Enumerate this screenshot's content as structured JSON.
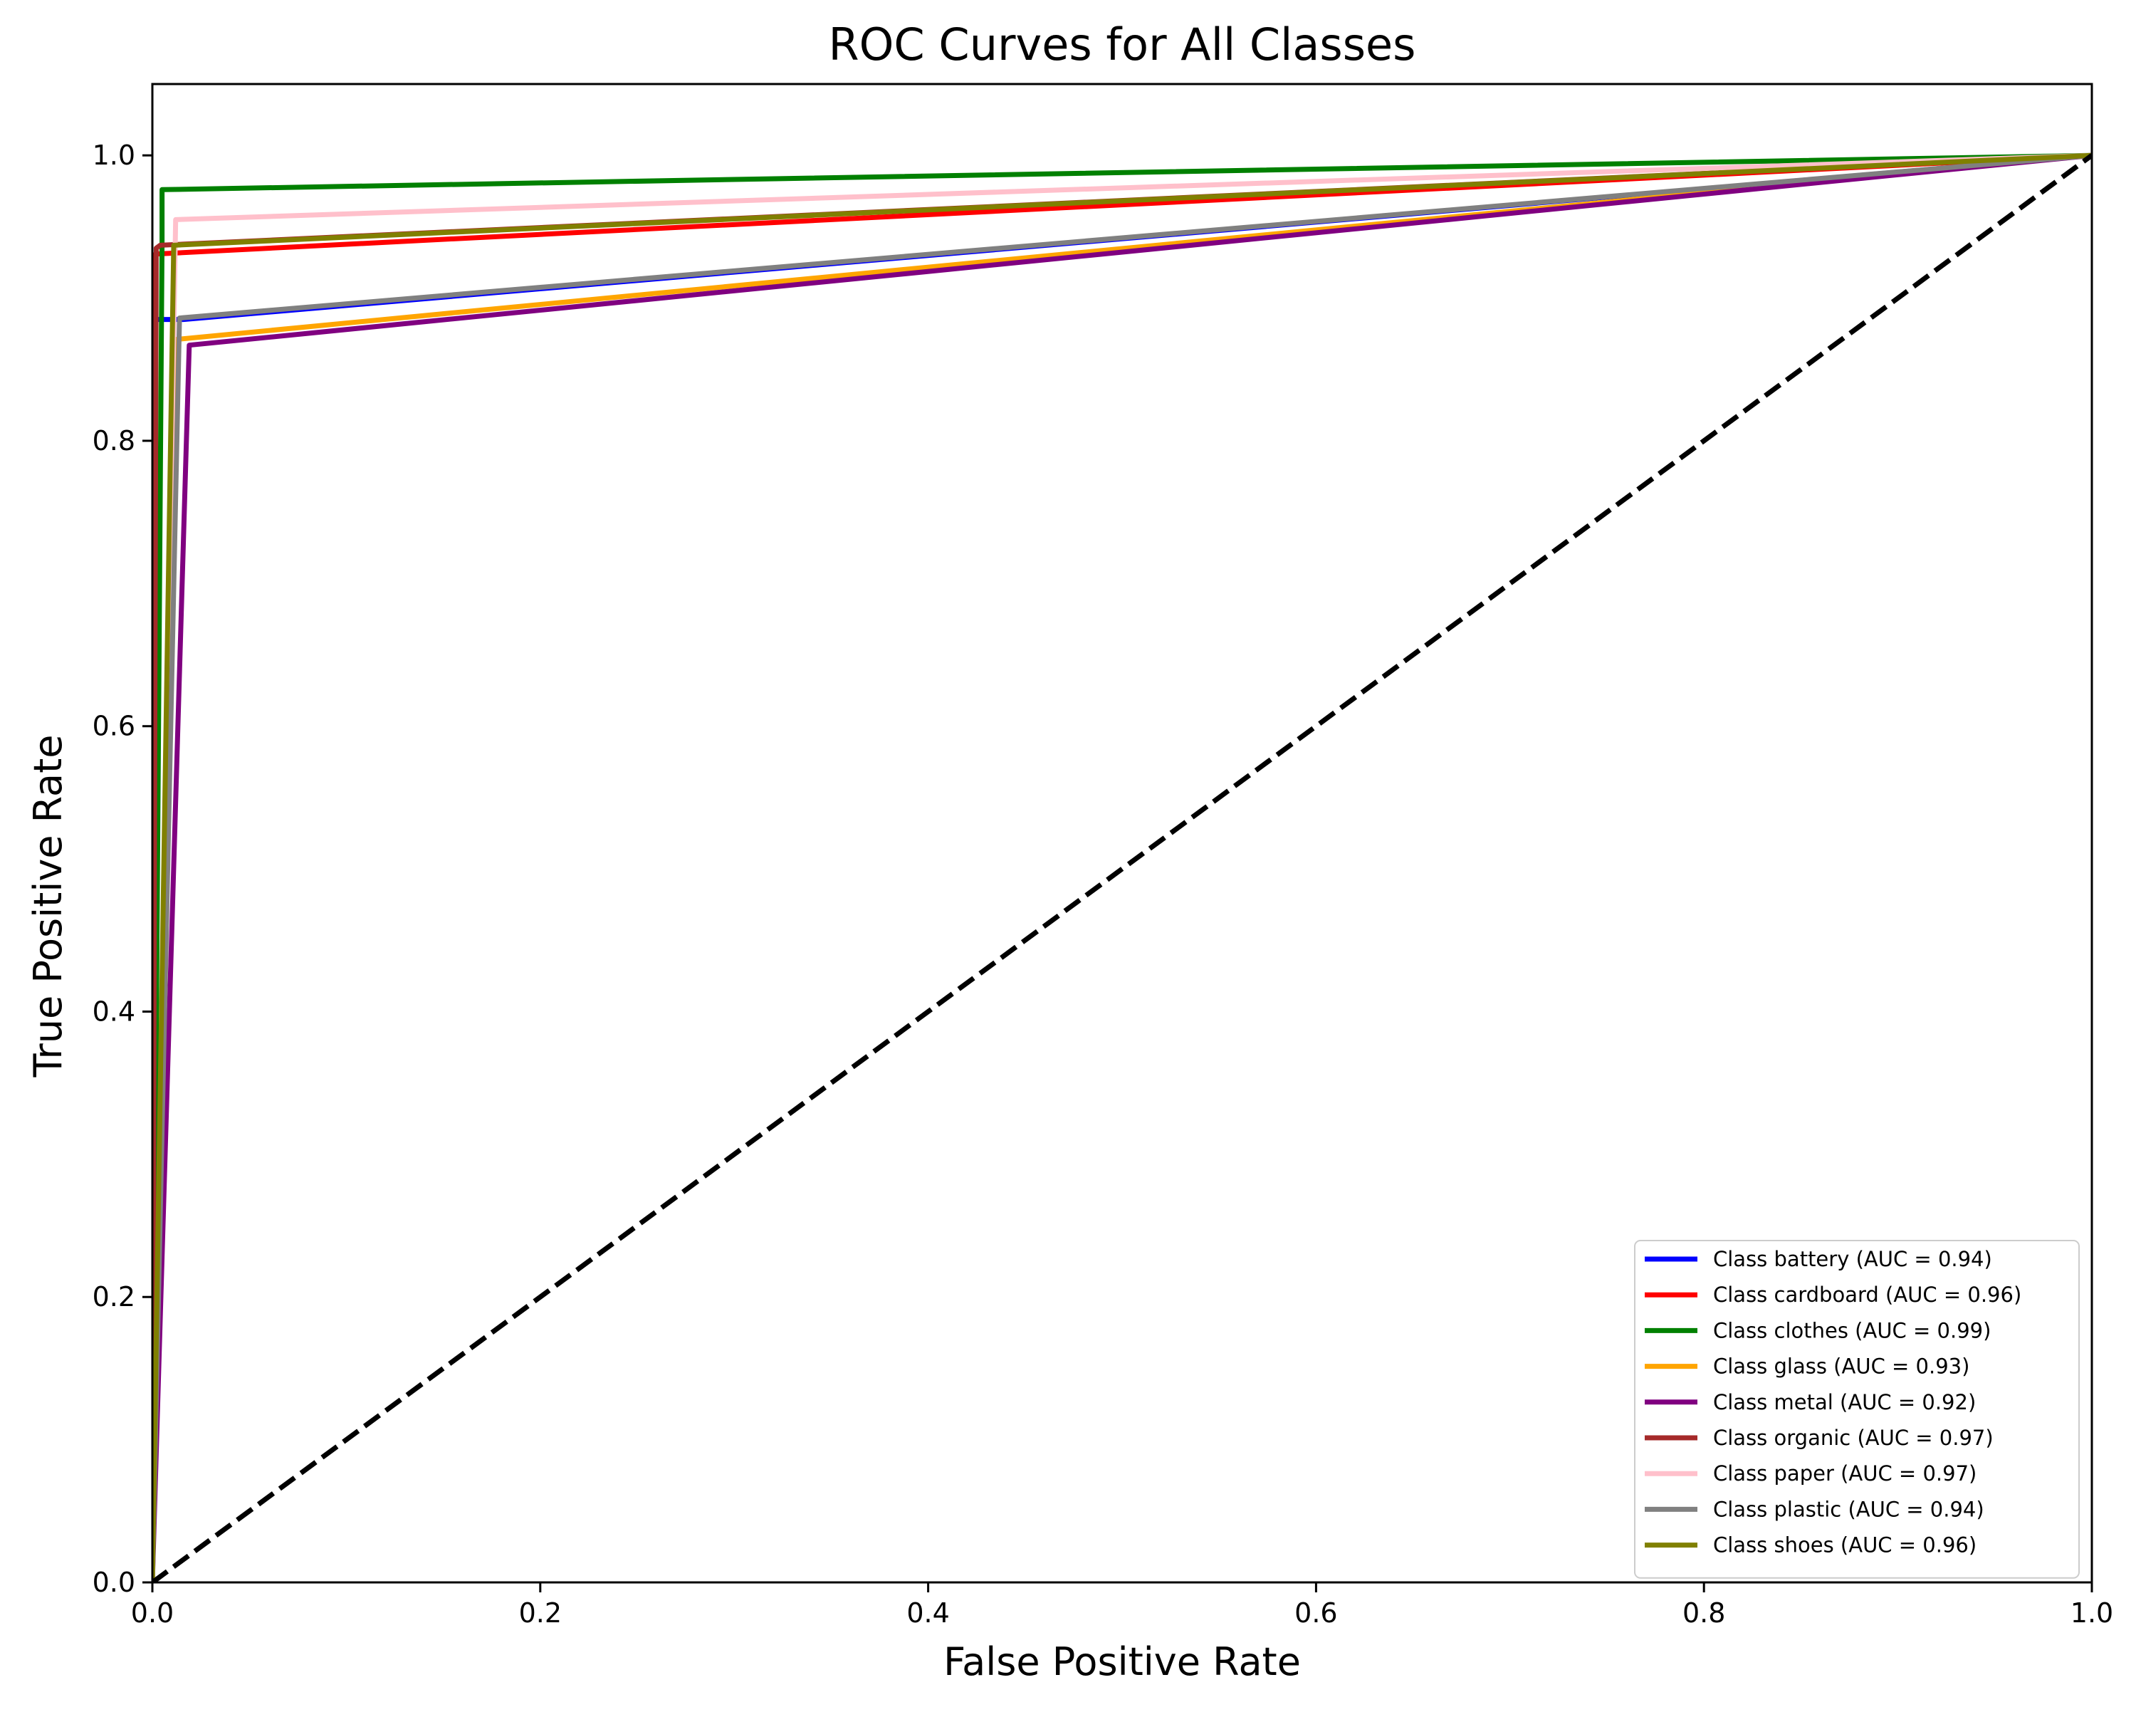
{
  "chart_data": {
    "type": "line",
    "title": "ROC Curves for All Classes",
    "xlabel": "False Positive Rate",
    "ylabel": "True Positive Rate",
    "xlim": [
      0.0,
      1.05
    ],
    "ylim": [
      0.0,
      1.05
    ],
    "display_xlim": [
      0.0,
      1.0
    ],
    "display_ylim": [
      0.0,
      1.05
    ],
    "xticks": [
      0.0,
      0.2,
      0.4,
      0.6,
      0.8,
      1.0
    ],
    "xtick_labels": [
      "0.0",
      "0.2",
      "0.4",
      "0.6",
      "0.8",
      "1.0"
    ],
    "yticks": [
      0.0,
      0.2,
      0.4,
      0.6,
      0.8,
      1.0
    ],
    "ytick_labels": [
      "0.0",
      "0.2",
      "0.4",
      "0.6",
      "0.8",
      "1.0"
    ],
    "grid": false,
    "legend_position": "lower-right",
    "series": [
      {
        "name": "Class battery (AUC = 0.94)",
        "color": "#0000ff",
        "x": [
          0.0,
          0.0,
          0.016,
          1.0
        ],
        "y": [
          0.0,
          0.885,
          0.885,
          1.0
        ]
      },
      {
        "name": "Class cardboard (AUC = 0.96)",
        "color": "#ff0000",
        "x": [
          0.0,
          0.0,
          0.003,
          1.0
        ],
        "y": [
          0.0,
          0.93,
          0.931,
          1.0
        ]
      },
      {
        "name": "Class clothes (AUC = 0.99)",
        "color": "#008000",
        "x": [
          0.0,
          0.005,
          0.005,
          1.0
        ],
        "y": [
          0.0,
          0.94,
          0.976,
          1.0
        ]
      },
      {
        "name": "Class glass (AUC = 0.93)",
        "color": "#ffa500",
        "x": [
          0.0,
          0.012,
          1.0
        ],
        "y": [
          0.0,
          0.871,
          1.0
        ]
      },
      {
        "name": "Class metal (AUC = 0.92)",
        "color": "#800080",
        "x": [
          0.0,
          0.019,
          1.0
        ],
        "y": [
          0.0,
          0.867,
          1.0
        ]
      },
      {
        "name": "Class organic (AUC = 0.97)",
        "color": "#a52a2a",
        "x": [
          0.0,
          0.002,
          0.004,
          1.0
        ],
        "y": [
          0.0,
          0.935,
          0.937,
          1.0
        ]
      },
      {
        "name": "Class paper (AUC = 0.97)",
        "color": "#ffc0cb",
        "x": [
          0.0,
          0.012,
          1.0
        ],
        "y": [
          0.0,
          0.955,
          1.0
        ]
      },
      {
        "name": "Class plastic (AUC = 0.94)",
        "color": "#808080",
        "x": [
          0.0,
          0.014,
          1.0
        ],
        "y": [
          0.0,
          0.886,
          1.0
        ]
      },
      {
        "name": "Class shoes (AUC = 0.96)",
        "color": "#808000",
        "x": [
          0.0,
          0.011,
          1.0
        ],
        "y": [
          0.0,
          0.937,
          1.0
        ]
      }
    ],
    "diagonal": {
      "color": "#000000",
      "dash": "dashed",
      "x": [
        0.0,
        1.0
      ],
      "y": [
        0.0,
        1.0
      ]
    }
  }
}
